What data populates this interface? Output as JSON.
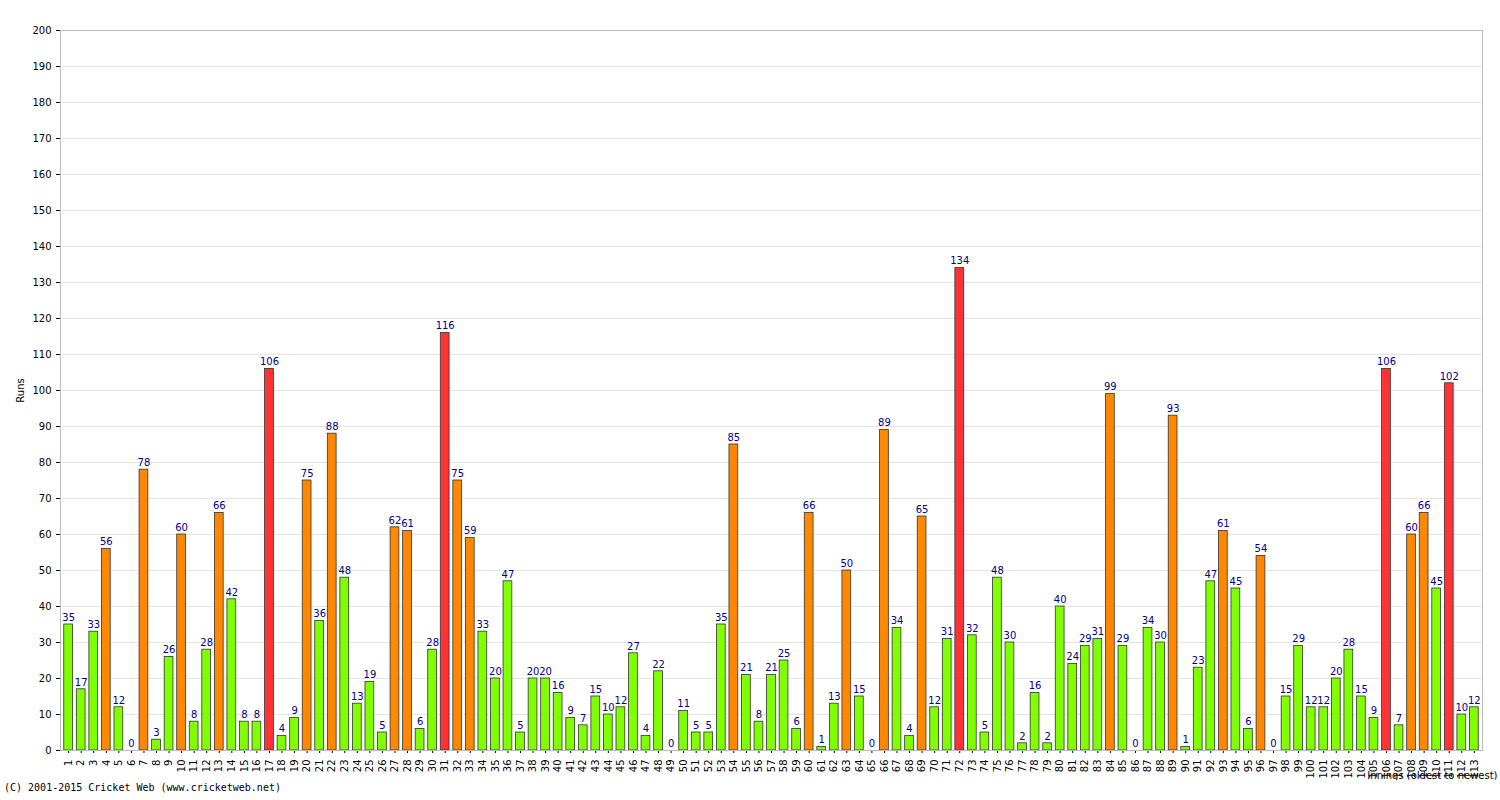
{
  "chart_data": {
    "type": "bar",
    "x_label": "Innings (oldest to newest)",
    "y_label": "Runs",
    "caption": "(C) 2001-2015 Cricket Web (www.cricketweb.net)",
    "categories": [
      "1",
      "2",
      "3",
      "4",
      "5",
      "6",
      "7",
      "8",
      "9",
      "10",
      "11",
      "12",
      "13",
      "14",
      "15",
      "16",
      "17",
      "18",
      "19",
      "20",
      "21",
      "22",
      "23",
      "24",
      "25",
      "26",
      "27",
      "28",
      "29",
      "30",
      "31",
      "32",
      "33",
      "34",
      "35",
      "36",
      "37",
      "38",
      "39",
      "40",
      "41",
      "42",
      "43",
      "44",
      "45",
      "46",
      "47",
      "48",
      "49",
      "50",
      "51",
      "52",
      "53",
      "54",
      "55",
      "56",
      "57",
      "58",
      "59",
      "60",
      "61",
      "62",
      "63",
      "64",
      "65",
      "66",
      "67",
      "68",
      "69",
      "70",
      "71",
      "72",
      "73",
      "74",
      "75",
      "76",
      "77",
      "78",
      "79",
      "80",
      "81",
      "82",
      "83",
      "84",
      "85",
      "86",
      "87",
      "88",
      "89",
      "90",
      "91",
      "92",
      "93",
      "94",
      "95",
      "96",
      "97",
      "98",
      "99",
      "100",
      "101",
      "102",
      "103",
      "104",
      "105",
      "106",
      "107",
      "108",
      "109",
      "110",
      "111",
      "112",
      "113"
    ],
    "values": [
      35,
      17,
      33,
      56,
      12,
      0,
      78,
      3,
      26,
      60,
      8,
      28,
      66,
      42,
      8,
      8,
      106,
      4,
      9,
      75,
      36,
      88,
      48,
      13,
      19,
      5,
      62,
      61,
      6,
      28,
      116,
      75,
      59,
      33,
      20,
      47,
      5,
      20,
      20,
      16,
      9,
      7,
      15,
      10,
      12,
      27,
      4,
      22,
      0,
      11,
      5,
      5,
      35,
      85,
      21,
      8,
      21,
      25,
      6,
      66,
      1,
      13,
      50,
      15,
      0,
      89,
      34,
      4,
      65,
      12,
      31,
      134,
      32,
      5,
      48,
      30,
      2,
      16,
      2,
      40,
      24,
      29,
      31,
      99,
      29,
      0,
      34,
      30,
      93,
      1,
      23,
      47,
      61,
      45,
      6,
      54,
      0,
      15,
      29,
      12,
      12,
      20,
      28,
      15,
      9,
      106,
      7,
      60,
      66,
      45,
      102,
      10,
      12
    ],
    "colors": [
      "#80ff00",
      "#80ff00",
      "#80ff00",
      "#ff8800",
      "#80ff00",
      "#80ff00",
      "#ff8800",
      "#80ff00",
      "#80ff00",
      "#ff8800",
      "#80ff00",
      "#80ff00",
      "#ff8800",
      "#80ff00",
      "#80ff00",
      "#80ff00",
      "#ff3333",
      "#80ff00",
      "#80ff00",
      "#ff8800",
      "#80ff00",
      "#ff8800",
      "#80ff00",
      "#80ff00",
      "#80ff00",
      "#80ff00",
      "#ff8800",
      "#ff8800",
      "#80ff00",
      "#80ff00",
      "#ff3333",
      "#ff8800",
      "#ff8800",
      "#80ff00",
      "#80ff00",
      "#80ff00",
      "#80ff00",
      "#80ff00",
      "#80ff00",
      "#80ff00",
      "#80ff00",
      "#80ff00",
      "#80ff00",
      "#80ff00",
      "#80ff00",
      "#80ff00",
      "#80ff00",
      "#80ff00",
      "#80ff00",
      "#80ff00",
      "#80ff00",
      "#80ff00",
      "#80ff00",
      "#ff8800",
      "#80ff00",
      "#80ff00",
      "#80ff00",
      "#80ff00",
      "#80ff00",
      "#ff8800",
      "#80ff00",
      "#80ff00",
      "#ff8800",
      "#80ff00",
      "#80ff00",
      "#ff8800",
      "#80ff00",
      "#80ff00",
      "#ff8800",
      "#80ff00",
      "#80ff00",
      "#ff3333",
      "#80ff00",
      "#80ff00",
      "#80ff00",
      "#80ff00",
      "#80ff00",
      "#80ff00",
      "#80ff00",
      "#80ff00",
      "#80ff00",
      "#80ff00",
      "#80ff00",
      "#ff8800",
      "#80ff00",
      "#80ff00",
      "#80ff00",
      "#80ff00",
      "#ff8800",
      "#80ff00",
      "#80ff00",
      "#80ff00",
      "#ff8800",
      "#80ff00",
      "#80ff00",
      "#ff8800",
      "#80ff00",
      "#80ff00",
      "#80ff00",
      "#80ff00",
      "#80ff00",
      "#80ff00",
      "#80ff00",
      "#80ff00",
      "#80ff00",
      "#ff3333",
      "#80ff00",
      "#ff8800",
      "#ff8800",
      "#80ff00",
      "#ff3333",
      "#80ff00",
      "#80ff00"
    ],
    "ylim": [
      0,
      200
    ],
    "yticks": [
      0,
      10,
      20,
      30,
      40,
      50,
      60,
      70,
      80,
      90,
      100,
      110,
      120,
      130,
      140,
      150,
      160,
      170,
      180,
      190,
      200
    ],
    "grid": true,
    "data_labels": true
  }
}
